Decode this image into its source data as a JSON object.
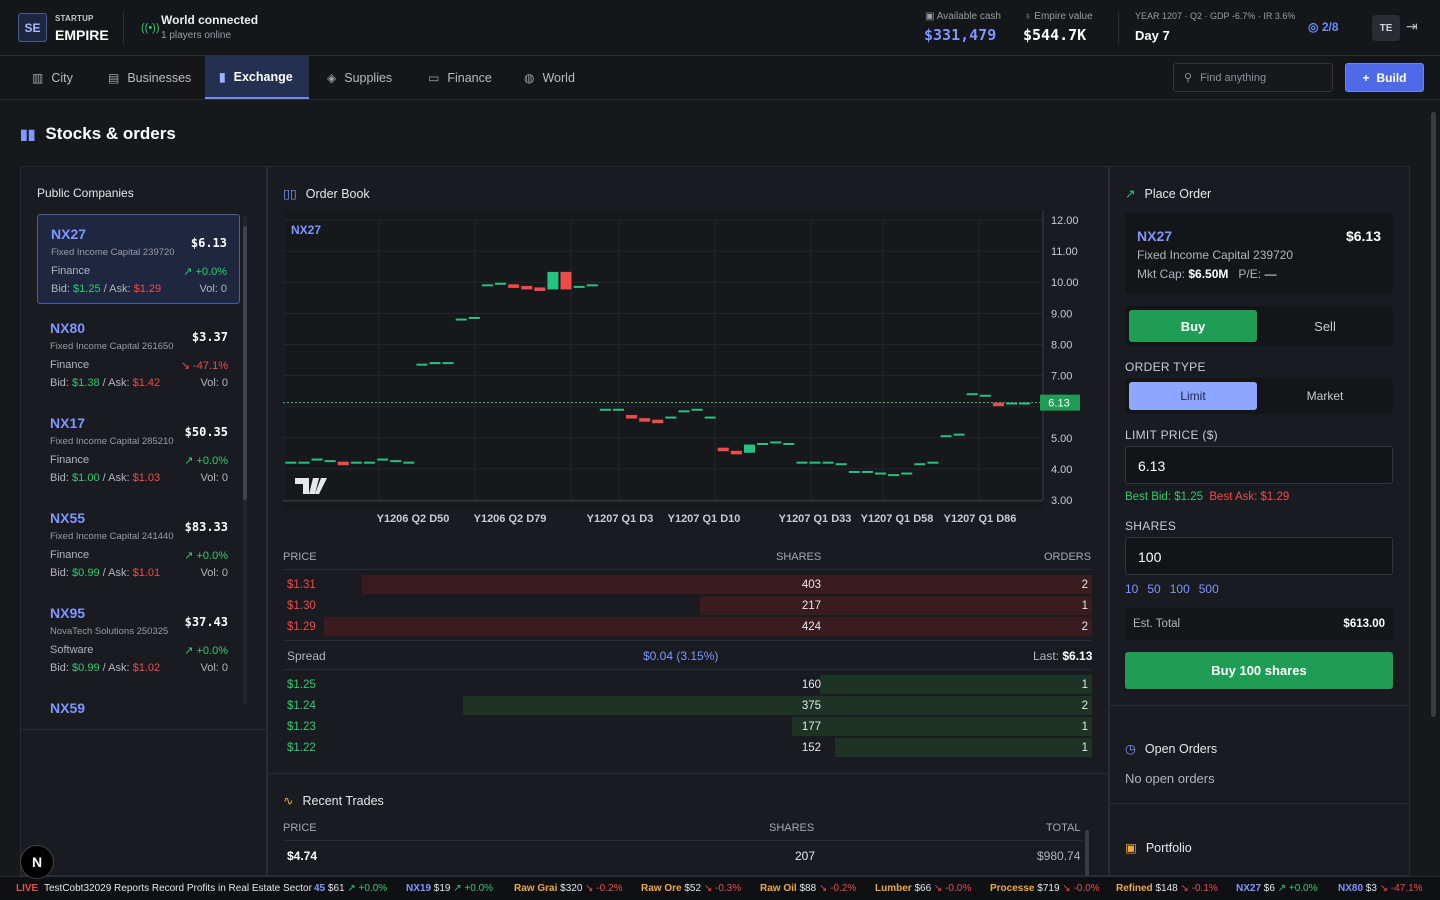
{
  "brand": {
    "logo": "SE",
    "small": "STARTUP",
    "big": "EMPIRE"
  },
  "connection": {
    "title": "World connected",
    "sub": "1 players online"
  },
  "stats": {
    "cash_label": "Available cash",
    "cash": "$331,479",
    "empire_label": "Empire value",
    "empire": "$544.7K",
    "year_line": "YEAR 1207 · Q2 · GDP -6.7% · IR 3.6%",
    "day": "Day 7",
    "progress": "2/8",
    "avatar": "TE"
  },
  "nav": {
    "tabs": [
      {
        "label": "City",
        "icon": "map-icon"
      },
      {
        "label": "Businesses",
        "icon": "building-icon"
      },
      {
        "label": "Exchange",
        "icon": "chart-icon"
      },
      {
        "label": "Supplies",
        "icon": "box-icon"
      },
      {
        "label": "Finance",
        "icon": "wallet-icon"
      },
      {
        "label": "World",
        "icon": "globe-icon"
      }
    ],
    "active": "Exchange",
    "search_placeholder": "Find anything",
    "build_label": "Build"
  },
  "page": {
    "title": "Stocks & orders"
  },
  "companies": {
    "title": "Public Companies",
    "items": [
      {
        "ticker": "NX27",
        "price": "$6.13",
        "name": "Fixed Income Capital 239720",
        "sector": "Finance",
        "change": "↗ +0.0%",
        "dir": "up",
        "bid": "$1.25",
        "ask": "$1.29",
        "vol": "Vol: 0"
      },
      {
        "ticker": "NX80",
        "price": "$3.37",
        "name": "Fixed Income Capital 261650",
        "sector": "Finance",
        "change": "↘ -47.1%",
        "dir": "down",
        "bid": "$1.38",
        "ask": "$1.42",
        "vol": "Vol: 0"
      },
      {
        "ticker": "NX17",
        "price": "$50.35",
        "name": "Fixed Income Capital 285210",
        "sector": "Finance",
        "change": "↗ +0.0%",
        "dir": "up",
        "bid": "$1.00",
        "ask": "$1.03",
        "vol": "Vol: 0"
      },
      {
        "ticker": "NX55",
        "price": "$83.33",
        "name": "Fixed Income Capital 241440",
        "sector": "Finance",
        "change": "↗ +0.0%",
        "dir": "up",
        "bid": "$0.99",
        "ask": "$1.01",
        "vol": "Vol: 0"
      },
      {
        "ticker": "NX95",
        "price": "$37.43",
        "name": "NovaTech Solutions 250325",
        "sector": "Software",
        "change": "↗ +0.0%",
        "dir": "up",
        "bid": "$0.99",
        "ask": "$1.02",
        "vol": "Vol: 0"
      },
      {
        "ticker": "NX59",
        "price": ""
      }
    ],
    "bid_label": "Bid:",
    "ask_label": "Ask:"
  },
  "orderbook": {
    "title": "Order Book",
    "chart_symbol": "NX27",
    "headers": {
      "price": "PRICE",
      "shares": "SHARES",
      "orders": "ORDERS"
    },
    "asks": [
      {
        "price": "$1.31",
        "shares": "403",
        "orders": "2",
        "fill": 0.95
      },
      {
        "price": "$1.30",
        "shares": "217",
        "orders": "1",
        "fill": 0.51
      },
      {
        "price": "$1.29",
        "shares": "424",
        "orders": "2",
        "fill": 1.0
      }
    ],
    "spread_label": "Spread",
    "spread": "$0.04 (3.15%)",
    "last_label": "Last:",
    "last": "$6.13",
    "bids": [
      {
        "price": "$1.25",
        "shares": "160",
        "orders": "1",
        "fill": 0.38
      },
      {
        "price": "$1.24",
        "shares": "375",
        "orders": "2",
        "fill": 0.88
      },
      {
        "price": "$1.23",
        "shares": "177",
        "orders": "1",
        "fill": 0.42
      },
      {
        "price": "$1.22",
        "shares": "152",
        "orders": "1",
        "fill": 0.36
      }
    ]
  },
  "chart_data": {
    "type": "candlestick",
    "ylim": [
      3.0,
      12.0
    ],
    "yticks": [
      "12.00",
      "11.00",
      "10.00",
      "9.00",
      "8.00",
      "7.00",
      "6.13",
      "5.00",
      "4.00",
      "3.00"
    ],
    "xticks": [
      "Y1206 Q2 D50",
      "Y1206 Q2 D79",
      "Y1207 Q1 D3",
      "Y1207 Q1 D10",
      "Y1207 Q1 D33",
      "Y1207 Q1 D58",
      "Y1207 Q1 D86"
    ],
    "last_price": 6.13,
    "last_label": "6.13",
    "candles": [
      [
        4.2,
        4.2,
        4.2,
        4.2
      ],
      [
        4.2,
        4.2,
        4.2,
        4.2
      ],
      [
        4.3,
        4.3,
        4.3,
        4.3
      ],
      [
        4.25,
        4.25,
        4.25,
        4.25
      ],
      [
        4.2,
        4.2,
        4.15,
        4.15
      ],
      [
        4.2,
        4.2,
        4.2,
        4.2
      ],
      [
        4.2,
        4.2,
        4.2,
        4.2
      ],
      [
        4.3,
        4.3,
        4.3,
        4.3
      ],
      [
        4.25,
        4.25,
        4.25,
        4.25
      ],
      [
        4.2,
        4.2,
        4.2,
        4.2
      ],
      [
        7.35,
        7.35,
        7.35,
        7.35
      ],
      [
        7.4,
        7.4,
        7.4,
        7.4
      ],
      [
        7.4,
        7.4,
        7.4,
        7.4
      ],
      [
        8.8,
        8.8,
        8.8,
        8.8
      ],
      [
        8.85,
        8.85,
        8.85,
        8.85
      ],
      [
        9.9,
        9.9,
        9.9,
        9.9
      ],
      [
        9.95,
        9.95,
        9.95,
        9.95
      ],
      [
        9.9,
        9.9,
        9.85,
        9.85
      ],
      [
        9.85,
        9.85,
        9.8,
        9.8
      ],
      [
        9.8,
        9.8,
        9.75,
        9.75
      ],
      [
        9.8,
        10.3,
        9.8,
        10.3
      ],
      [
        10.3,
        10.3,
        9.8,
        9.8
      ],
      [
        9.85,
        9.85,
        9.85,
        9.85
      ],
      [
        9.9,
        9.9,
        9.9,
        9.9
      ],
      [
        5.9,
        5.9,
        5.9,
        5.9
      ],
      [
        5.9,
        5.9,
        5.9,
        5.9
      ],
      [
        5.7,
        5.7,
        5.65,
        5.65
      ],
      [
        5.6,
        5.6,
        5.55,
        5.55
      ],
      [
        5.55,
        5.55,
        5.5,
        5.5
      ],
      [
        5.65,
        5.65,
        5.65,
        5.65
      ],
      [
        5.85,
        5.85,
        5.85,
        5.85
      ],
      [
        5.9,
        5.9,
        5.9,
        5.9
      ],
      [
        5.65,
        5.65,
        5.65,
        5.65
      ],
      [
        4.65,
        4.65,
        4.6,
        4.6
      ],
      [
        4.55,
        4.55,
        4.5,
        4.5
      ],
      [
        4.55,
        4.75,
        4.55,
        4.75
      ],
      [
        4.8,
        4.8,
        4.8,
        4.8
      ],
      [
        4.85,
        4.85,
        4.85,
        4.85
      ],
      [
        4.8,
        4.8,
        4.8,
        4.8
      ],
      [
        4.2,
        4.2,
        4.2,
        4.2
      ],
      [
        4.2,
        4.2,
        4.2,
        4.2
      ],
      [
        4.2,
        4.2,
        4.2,
        4.2
      ],
      [
        4.15,
        4.15,
        4.15,
        4.15
      ],
      [
        3.9,
        3.9,
        3.9,
        3.9
      ],
      [
        3.9,
        3.9,
        3.9,
        3.9
      ],
      [
        3.85,
        3.85,
        3.85,
        3.85
      ],
      [
        3.8,
        3.8,
        3.8,
        3.8
      ],
      [
        3.85,
        3.85,
        3.85,
        3.85
      ],
      [
        4.15,
        4.15,
        4.15,
        4.15
      ],
      [
        4.2,
        4.2,
        4.2,
        4.2
      ],
      [
        5.05,
        5.05,
        5.05,
        5.05
      ],
      [
        5.1,
        5.1,
        5.1,
        5.1
      ],
      [
        6.4,
        6.4,
        6.4,
        6.4
      ],
      [
        6.35,
        6.35,
        6.35,
        6.35
      ],
      [
        6.1,
        6.1,
        6.05,
        6.05
      ],
      [
        6.1,
        6.1,
        6.1,
        6.1
      ],
      [
        6.1,
        6.1,
        6.1,
        6.1
      ]
    ]
  },
  "trades": {
    "title": "Recent Trades",
    "headers": {
      "price": "PRICE",
      "shares": "SHARES",
      "total": "TOTAL"
    },
    "rows": [
      {
        "price": "$4.74",
        "shares": "207",
        "total": "$980.74"
      }
    ]
  },
  "place_order": {
    "title": "Place Order",
    "ticker": "NX27",
    "price": "$6.13",
    "name": "Fixed Income Capital 239720",
    "mktcap_label": "Mkt Cap:",
    "mktcap": "$6.50M",
    "pe_label": "P/E:",
    "pe": "—",
    "side": {
      "buy": "Buy",
      "sell": "Sell"
    },
    "order_type_label": "ORDER TYPE",
    "order_type": {
      "limit": "Limit",
      "market": "Market"
    },
    "limit_label": "LIMIT PRICE ($)",
    "limit_value": "6.13",
    "best_bid": "Best Bid: $1.25",
    "best_ask": "Best Ask: $1.29",
    "shares_label": "SHARES",
    "shares_value": "100",
    "quick": [
      "10",
      "50",
      "100",
      "500"
    ],
    "est_label": "Est. Total",
    "est_value": "$613.00",
    "submit": "Buy 100 shares"
  },
  "open_orders": {
    "title": "Open Orders",
    "empty": "No open orders"
  },
  "portfolio": {
    "title": "Portfolio"
  },
  "ticker": {
    "live": "LIVE",
    "headline": "TestCobt32029 Reports Record Profits in Real Estate Sector",
    "items": [
      {
        "name": "45",
        "price": "$61",
        "chg": "+0.0%",
        "dir": "up"
      },
      {
        "name": "NX19",
        "price": "$19",
        "chg": "+0.0%",
        "dir": "up"
      },
      {
        "name": "Raw Grai",
        "price": "$320",
        "chg": "-0.2%",
        "dir": "down"
      },
      {
        "name": "Raw Ore",
        "price": "$52",
        "chg": "-0.3%",
        "dir": "down"
      },
      {
        "name": "Raw Oil",
        "price": "$88",
        "chg": "-0.2%",
        "dir": "down"
      },
      {
        "name": "Lumber",
        "price": "$66",
        "chg": "-0.0%",
        "dir": "down"
      },
      {
        "name": "Processe",
        "price": "$719",
        "chg": "-0.0%",
        "dir": "down"
      },
      {
        "name": "Refined",
        "price": "$148",
        "chg": "-0.1%",
        "dir": "down"
      },
      {
        "name": "NX27",
        "price": "$6",
        "chg": "+0.0%",
        "dir": "up"
      },
      {
        "name": "NX80",
        "price": "$3",
        "chg": "-47.1%",
        "dir": "down"
      }
    ]
  },
  "colors": {
    "accent": "#6b8cff",
    "up": "#2ecc71",
    "down": "#ef4b4b",
    "buy": "#1f9d55"
  },
  "badge": "N"
}
